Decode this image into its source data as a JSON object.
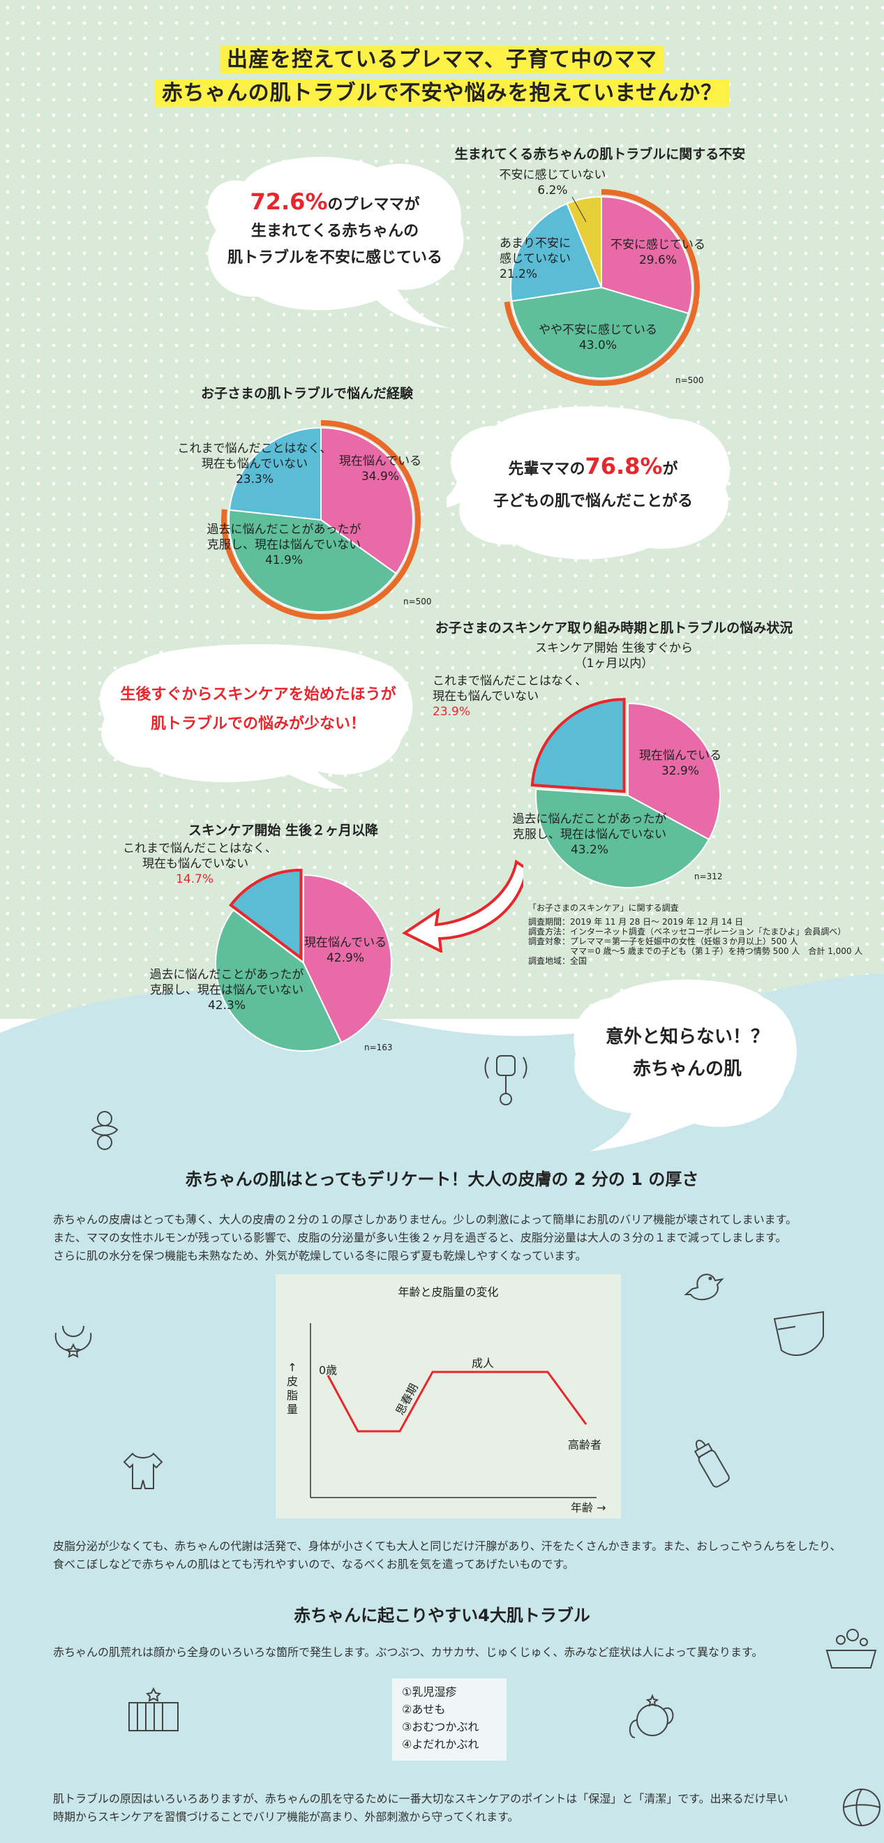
{
  "header": {
    "line1": "出産を控えているプレママ、子育て中のママ",
    "line2": "赤ちゃんの肌トラブルで不安や悩みを抱えていませんか？"
  },
  "bubble1": {
    "pct": "72.6%",
    "tail": "のプレママが",
    "line2": "生まれてくる赤ちゃんの",
    "line3": "肌トラブルを不安に感じている"
  },
  "bubble2": {
    "pre": "先輩ママの",
    "pct": "76.8%",
    "tail": "が",
    "line2": "子どもの肌で悩んだことがる"
  },
  "bubble3": {
    "line1": "生後すぐからスキンケアを始めたほうが",
    "line2": "肌トラブルでの悩みが少ない！"
  },
  "bubble4": {
    "line1": "意外と知らない！？",
    "line2": "赤ちゃんの肌"
  },
  "chart_data": [
    {
      "type": "pie",
      "title": "生まれてくる赤ちゃんの肌トラブルに関する不安",
      "n": "n=500",
      "slices": [
        {
          "name": "不安に感じている",
          "value": 29.6,
          "color": "#e86aa7"
        },
        {
          "name": "やや不安に感じている",
          "value": 43.0,
          "color": "#5fbf9c"
        },
        {
          "name": "あまり不安に感じていない",
          "value": 21.2,
          "color": "#5bbcd6"
        },
        {
          "name": "不安に感じていない",
          "value": 6.2,
          "color": "#e8cf3a"
        }
      ],
      "labels": [
        {
          "lines": [
            "不安に感じている",
            "29.6%"
          ]
        },
        {
          "lines": [
            "やや不安に感じている",
            "43.0%"
          ]
        },
        {
          "lines": [
            "あまり不安に",
            "感じていない",
            "21.2%"
          ]
        },
        {
          "lines": [
            "不安に感じていない",
            "6.2%"
          ]
        }
      ]
    },
    {
      "type": "pie",
      "title": "お子さまの肌トラブルで悩んだ経験",
      "n": "n=500",
      "slices": [
        {
          "name": "現在悩んでいる",
          "value": 34.9,
          "color": "#e86aa7"
        },
        {
          "name": "過去に悩んだことがあったが克服し、現在は悩んでいない",
          "value": 41.9,
          "color": "#5fbf9c"
        },
        {
          "name": "これまで悩んだことはなく、現在も悩んでいない",
          "value": 23.3,
          "color": "#5bbcd6"
        }
      ],
      "labels": [
        {
          "lines": [
            "現在悩んでいる",
            "34.9%"
          ]
        },
        {
          "lines": [
            "過去に悩んだことがあったが",
            "克服し、現在は悩んでいない",
            "41.9%"
          ]
        },
        {
          "lines": [
            "これまで悩んだことはなく、",
            "現在も悩んでいない",
            "23.3%"
          ]
        }
      ]
    },
    {
      "type": "pie",
      "title": "お子さまのスキンケア取り組み時期と肌トラブルの悩み状況",
      "subtitle": "スキンケア開始 生後すぐから",
      "subtitle2": "（1ヶ月以内）",
      "n": "n=312",
      "slices": [
        {
          "name": "現在悩んでいる",
          "value": 32.9,
          "color": "#e86aa7"
        },
        {
          "name": "過去に悩んだことがあったが克服し、現在は悩んでいない",
          "value": 43.2,
          "color": "#5fbf9c"
        },
        {
          "name": "これまで悩んだことはなく、現在も悩んでいない",
          "value": 23.9,
          "color": "#5bbcd6"
        }
      ],
      "labels": [
        {
          "lines": [
            "現在悩んでいる",
            "32.9%"
          ]
        },
        {
          "lines": [
            "過去に悩んだことがあったが",
            "克服し、現在は悩んでいない",
            "43.2%"
          ]
        },
        {
          "lines": [
            "これまで悩んだことはなく、",
            "現在も悩んでいない",
            "23.9%"
          ]
        }
      ]
    },
    {
      "type": "pie",
      "title": "スキンケア開始 生後２ヶ月以降",
      "n": "n=163",
      "slices": [
        {
          "name": "現在悩んでいる",
          "value": 42.9,
          "color": "#e86aa7"
        },
        {
          "name": "過去に悩んだことがあったが克服し、現在は悩んでいない",
          "value": 42.3,
          "color": "#5fbf9c"
        },
        {
          "name": "これまで悩んだことはなく、現在も悩んでいない",
          "value": 14.7,
          "color": "#5bbcd6"
        }
      ],
      "labels": [
        {
          "lines": [
            "現在悩んでいる",
            "42.9%"
          ]
        },
        {
          "lines": [
            "過去に悩んだことがあったが",
            "克服し、現在は悩んでいない",
            "42.3%"
          ]
        },
        {
          "lines": [
            "これまで悩んだことはなく、",
            "現在も悩んでいない",
            "14.7%"
          ]
        }
      ]
    },
    {
      "type": "line",
      "title": "年齢と皮脂量の変化",
      "xlabel": "年齢 →",
      "ylabel": "↑皮脂量",
      "annotations": [
        "0歳",
        "思春期",
        "成人",
        "高齢者"
      ]
    }
  ],
  "survey": {
    "title": "「お子さまのスキンケア」に関する調査",
    "lines": [
      "調査期間：2019 年 11 月 28 日～ 2019 年 12 月 14 日",
      "調査方法：インターネット調査（ベネッセコーポレーション「たまひよ」会員調べ）",
      "調査対象：プレママ＝第一子を妊娠中の女性（妊娠３か月以上）500 人",
      "　　　　　ママ＝0 歳～5 歳までの子ども（第１子）を持つ情勢 500 人　合計 1,000 人",
      "調査地域：全国"
    ]
  },
  "section1": {
    "heading": "赤ちゃんの肌はとってもデリケート！大人の皮膚の 2 分の 1 の厚さ",
    "p1": "赤ちゃんの皮膚はとっても薄く、大人の皮膚の２分の１の厚さしかありません。少しの刺激によって簡単にお肌のバリア機能が壊されてしまいます。",
    "p2": "また、ママの女性ホルモンが残っている影響で、皮脂の分泌量が多い生後２ヶ月を過ぎると、皮脂分泌量は大人の３分の１まで減ってしまします。",
    "p3": "さらに肌の水分を保つ機能も未熟なため、外気が乾燥している冬に限らず夏も乾燥しやすくなっています。",
    "p4": "皮脂分泌が少なくても、赤ちゃんの代謝は活発で、身体が小さくても大人と同じだけ汗腺があり、汗をたくさんかきます。また、おしっこやうんちをしたり、",
    "p5": "食べこぼしなどで赤ちゃんの肌はとても汚れやすいので、なるべくお肌を気を遣ってあげたいものです。"
  },
  "section2": {
    "heading": "赤ちゃんに起こりやすい4大肌トラブル",
    "p1": "赤ちゃんの肌荒れは顔から全身のいろいろな箇所で発生します。ぶつぶつ、カサカサ、じゅくじゅく、赤みなど症状は人によって異なります。",
    "list": [
      "①乳児湿疹",
      "②あせも",
      "③おむつかぶれ",
      "④よだれかぶれ"
    ],
    "p2": "肌トラブルの原因はいろいろありますが、赤ちゃんの肌を守るために一番大切なスキンケアのポイントは「保湿」と「清潔」です。出来るだけ早い",
    "p3": "時期からスキンケアを習慣づけることでバリア機能が高まり、外部刺激から守ってくれます。"
  },
  "colors": {
    "pink": "#e86aa7",
    "green": "#5fbf9c",
    "blue": "#5bbcd6",
    "yellow": "#e8cf3a",
    "orange": "#ea6a2a",
    "red": "#e8262b",
    "mint_bg": "#d9ead9",
    "blue_bg": "#c9e6ea"
  }
}
